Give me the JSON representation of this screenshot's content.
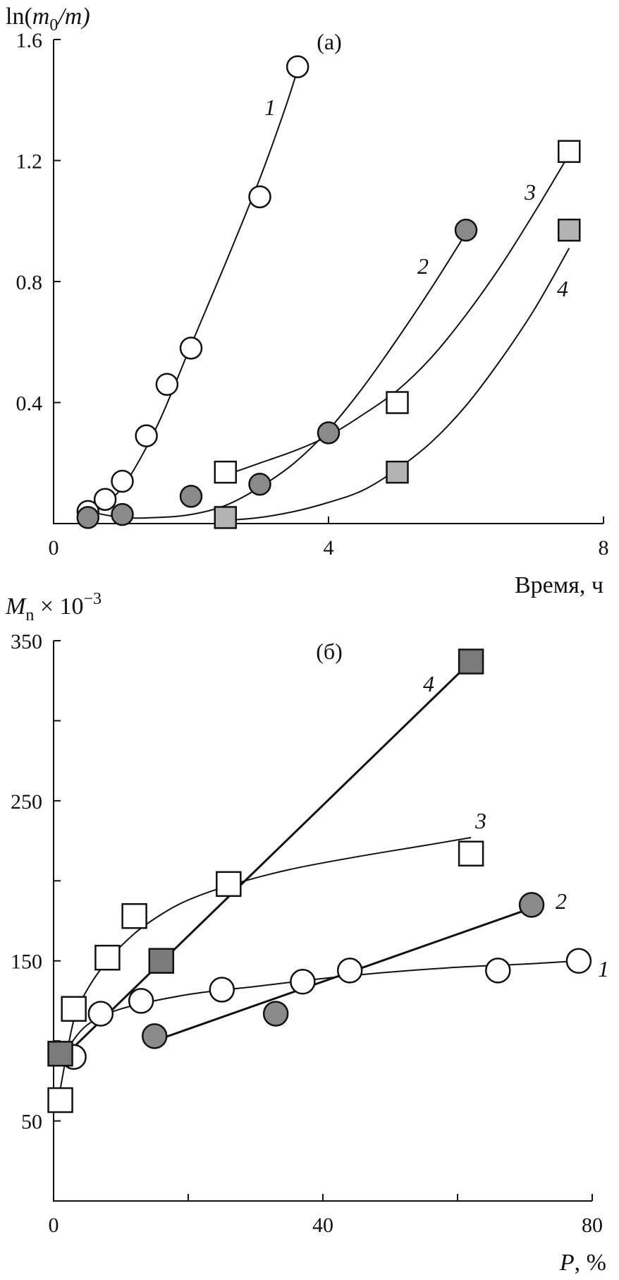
{
  "chart_data": [
    {
      "type": "scatter",
      "panel_label": "(а)",
      "ylabel": "ln(m0/m)",
      "ylabel_parts": {
        "pre": "ln(",
        "m": "m",
        "sub": "0",
        "post": "/m)"
      },
      "xlabel": "Время, ч",
      "xlim": [
        0,
        8
      ],
      "ylim": [
        0,
        1.6
      ],
      "x_ticks": [
        0,
        4,
        8
      ],
      "y_ticks": [
        0.4,
        0.8,
        1.2,
        1.6
      ],
      "x_tick_labels": [
        "0",
        "4",
        "8"
      ],
      "y_tick_labels": [
        "0.4",
        "0.8",
        "1.2",
        "1.6"
      ],
      "series": [
        {
          "curve_label": "1",
          "marker": "open-circle",
          "x": [
            0.5,
            0.75,
            1.0,
            1.35,
            1.65,
            2.0,
            3.0,
            3.55
          ],
          "y": [
            0.04,
            0.08,
            0.14,
            0.29,
            0.46,
            0.58,
            1.08,
            1.51
          ],
          "fit_x": [
            0.55,
            1.0,
            1.5,
            2.0,
            2.5,
            3.0,
            3.35,
            3.55
          ],
          "fit_y": [
            0.03,
            0.12,
            0.32,
            0.59,
            0.86,
            1.14,
            1.36,
            1.5
          ]
        },
        {
          "curve_label": "2",
          "marker": "filled-circle",
          "x": [
            0.5,
            1.0,
            2.0,
            3.0,
            4.0,
            6.0
          ],
          "y": [
            0.02,
            0.03,
            0.09,
            0.13,
            0.3,
            0.97
          ],
          "fit_x": [
            0.5,
            1.0,
            1.5,
            2.0,
            2.5,
            3.0,
            3.5,
            4.0,
            4.5,
            5.0,
            5.5,
            6.0
          ],
          "fit_y": [
            0.04,
            0.02,
            0.02,
            0.03,
            0.06,
            0.12,
            0.2,
            0.31,
            0.45,
            0.61,
            0.78,
            0.96
          ]
        },
        {
          "curve_label": "3",
          "marker": "open-square",
          "x": [
            2.5,
            5.0,
            7.5
          ],
          "y": [
            0.17,
            0.4,
            1.23
          ],
          "fit_x": [
            2.5,
            3.0,
            3.5,
            4.0,
            4.5,
            5.0,
            5.5,
            6.0,
            6.5,
            7.0,
            7.5
          ],
          "fit_y": [
            0.16,
            0.2,
            0.24,
            0.29,
            0.36,
            0.44,
            0.55,
            0.69,
            0.85,
            1.03,
            1.22
          ]
        },
        {
          "curve_label": "4",
          "marker": "filled-square",
          "x": [
            2.5,
            5.0,
            7.5
          ],
          "y": [
            0.02,
            0.17,
            0.97
          ],
          "fit_x": [
            2.5,
            3.0,
            3.5,
            4.0,
            4.5,
            5.0,
            5.5,
            6.0,
            6.5,
            7.0,
            7.5
          ],
          "fit_y": [
            0.01,
            0.02,
            0.04,
            0.07,
            0.11,
            0.18,
            0.27,
            0.39,
            0.54,
            0.71,
            0.91
          ]
        }
      ]
    },
    {
      "type": "scatter",
      "panel_label": "(б)",
      "ylabel": "Mn × 10−3",
      "ylabel_parts": {
        "m": "M",
        "sub": "n",
        "mid": " × 10",
        "sup": "−3"
      },
      "xlabel": "P, %",
      "xlabel_parts": {
        "var": "P",
        "post": ", %"
      },
      "xlim": [
        0,
        80
      ],
      "ylim": [
        0,
        350
      ],
      "x_ticks": [
        0,
        20,
        40,
        60,
        80
      ],
      "y_ticks": [
        50,
        100,
        150,
        200,
        250,
        300,
        350
      ],
      "x_tick_labels": [
        "0",
        "",
        "40",
        "",
        "80"
      ],
      "y_tick_labels": [
        "50",
        "",
        "150",
        "",
        "250",
        "",
        "350"
      ],
      "series": [
        {
          "curve_label": "1",
          "marker": "open-circle",
          "x": [
            3,
            7,
            13,
            25,
            37,
            44,
            66,
            78
          ],
          "y": [
            90,
            117,
            125,
            132,
            137,
            144,
            144,
            150
          ],
          "fit_x": [
            2,
            5,
            10,
            20,
            30,
            40,
            50,
            60,
            70,
            78
          ],
          "fit_y": [
            95,
            110,
            120,
            129,
            134,
            139,
            143,
            146,
            148,
            150
          ]
        },
        {
          "curve_label": "2",
          "marker": "filled-circle",
          "x": [
            15,
            33,
            71
          ],
          "y": [
            103,
            117,
            185
          ],
          "fit_x": [
            15,
            71
          ],
          "fit_y": [
            100,
            183
          ]
        },
        {
          "curve_label": "3",
          "marker": "open-square",
          "x": [
            1,
            3,
            8,
            12,
            26,
            62
          ],
          "y": [
            63,
            120,
            152,
            178,
            198,
            217
          ],
          "fit_x": [
            1,
            3,
            5,
            8,
            12,
            16,
            20,
            26,
            35,
            45,
            55,
            62
          ],
          "fit_y": [
            70,
            113,
            132,
            150,
            167,
            179,
            188,
            197,
            207,
            215,
            222,
            227
          ]
        },
        {
          "curve_label": "4",
          "marker": "filled-square",
          "x": [
            1,
            16,
            62
          ],
          "y": [
            92,
            150,
            337
          ],
          "fit_x": [
            1,
            62
          ],
          "fit_y": [
            88,
            337
          ]
        }
      ]
    }
  ]
}
